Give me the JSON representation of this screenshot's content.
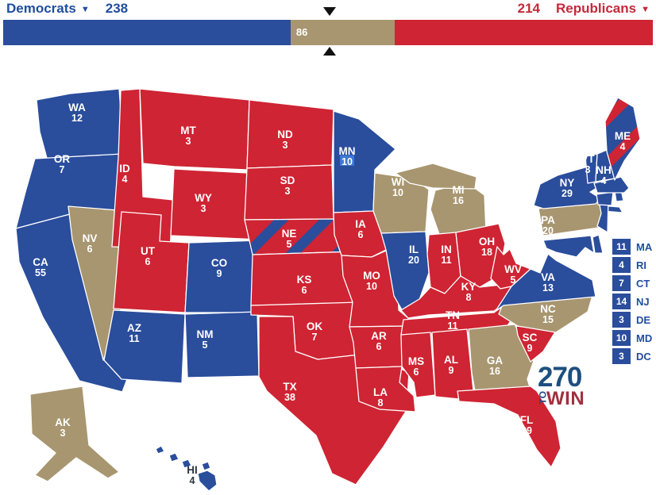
{
  "header": {
    "democrats": {
      "label": "Democrats",
      "ev": "238"
    },
    "republicans": {
      "label": "Republicans",
      "ev": "214"
    },
    "tossup": {
      "ev": "86"
    }
  },
  "icons": {
    "dropdown_caret": "▼"
  },
  "colors": {
    "dem": "#2A4D9C",
    "rep": "#CF2433",
    "tossup": "#A89670",
    "dem_text": "#1F4E9E",
    "rep_text": "#C5293A",
    "highlight": "#3D78D8",
    "state_label": "#FFFFFF",
    "dark_label": "#2B3440",
    "marker": "#111111",
    "logo_blue": "#1D4F7E",
    "logo_red": "#A1303F"
  },
  "map": {
    "states": [
      {
        "abbr": "WA",
        "ev": "12",
        "status": "dem",
        "label": [
          97,
          136
        ]
      },
      {
        "abbr": "OR",
        "ev": "7",
        "status": "dem",
        "label": [
          78,
          201
        ]
      },
      {
        "abbr": "CA",
        "ev": "55",
        "status": "dem",
        "label": [
          51,
          331
        ]
      },
      {
        "abbr": "NV",
        "ev": "6",
        "status": "tossup",
        "label": [
          113,
          301
        ]
      },
      {
        "abbr": "ID",
        "ev": "4",
        "status": "rep",
        "label": [
          157,
          213
        ]
      },
      {
        "abbr": "MT",
        "ev": "3",
        "status": "rep",
        "label": [
          237,
          165
        ]
      },
      {
        "abbr": "WY",
        "ev": "3",
        "status": "rep",
        "label": [
          256,
          250
        ]
      },
      {
        "abbr": "UT",
        "ev": "6",
        "status": "rep",
        "label": [
          186,
          317
        ]
      },
      {
        "abbr": "CO",
        "ev": "9",
        "status": "dem",
        "label": [
          276,
          332
        ]
      },
      {
        "abbr": "AZ",
        "ev": "11",
        "status": "dem",
        "label": [
          169,
          414
        ]
      },
      {
        "abbr": "NM",
        "ev": "5",
        "status": "dem",
        "label": [
          258,
          422
        ]
      },
      {
        "abbr": "ND",
        "ev": "3",
        "status": "rep",
        "label": [
          359,
          170
        ]
      },
      {
        "abbr": "SD",
        "ev": "3",
        "status": "rep",
        "label": [
          362,
          228
        ]
      },
      {
        "abbr": "NE",
        "ev": "5",
        "status": "rep",
        "label": [
          364,
          295
        ],
        "stripes": "dem"
      },
      {
        "abbr": "KS",
        "ev": "6",
        "status": "rep",
        "label": [
          383,
          353
        ]
      },
      {
        "abbr": "OK",
        "ev": "7",
        "status": "rep",
        "label": [
          396,
          412
        ]
      },
      {
        "abbr": "TX",
        "ev": "38",
        "status": "rep",
        "label": [
          365,
          488
        ]
      },
      {
        "abbr": "MN",
        "ev": "10",
        "status": "dem",
        "label": [
          437,
          191
        ],
        "ev_highlight": true
      },
      {
        "abbr": "IA",
        "ev": "6",
        "status": "rep",
        "label": [
          454,
          283
        ]
      },
      {
        "abbr": "MO",
        "ev": "10",
        "status": "rep",
        "label": [
          468,
          348
        ]
      },
      {
        "abbr": "AR",
        "ev": "6",
        "status": "rep",
        "label": [
          477,
          424
        ]
      },
      {
        "abbr": "LA",
        "ev": "8",
        "status": "rep",
        "label": [
          479,
          495
        ]
      },
      {
        "abbr": "WI",
        "ev": "10",
        "status": "tossup",
        "label": [
          501,
          230
        ]
      },
      {
        "abbr": "IL",
        "ev": "20",
        "status": "dem",
        "label": [
          521,
          315
        ]
      },
      {
        "abbr": "MI",
        "ev": "16",
        "status": "tossup",
        "label": [
          577,
          240
        ]
      },
      {
        "abbr": "IN",
        "ev": "11",
        "status": "rep",
        "label": [
          562,
          315
        ]
      },
      {
        "abbr": "OH",
        "ev": "18",
        "status": "rep",
        "label": [
          613,
          305
        ]
      },
      {
        "abbr": "KY",
        "ev": "8",
        "status": "rep",
        "label": [
          590,
          362
        ]
      },
      {
        "abbr": "TN",
        "ev": "11",
        "status": "rep",
        "label": [
          570,
          398
        ]
      },
      {
        "abbr": "MS",
        "ev": "6",
        "status": "rep",
        "label": [
          524,
          456
        ]
      },
      {
        "abbr": "AL",
        "ev": "9",
        "status": "rep",
        "label": [
          568,
          454
        ]
      },
      {
        "abbr": "GA",
        "ev": "16",
        "status": "tossup",
        "label": [
          623,
          455
        ]
      },
      {
        "abbr": "FL",
        "ev": "29",
        "status": "rep",
        "label": [
          663,
          530
        ]
      },
      {
        "abbr": "SC",
        "ev": "9",
        "status": "rep",
        "label": [
          667,
          426
        ]
      },
      {
        "abbr": "NC",
        "ev": "15",
        "status": "tossup",
        "label": [
          690,
          390
        ]
      },
      {
        "abbr": "WV",
        "ev": "5",
        "status": "rep",
        "label": [
          646,
          340
        ]
      },
      {
        "abbr": "VA",
        "ev": "13",
        "status": "dem",
        "label": [
          690,
          350
        ]
      },
      {
        "abbr": "PA",
        "ev": "20",
        "status": "tossup",
        "label": [
          690,
          278
        ]
      },
      {
        "abbr": "NY",
        "ev": "29",
        "status": "dem",
        "label": [
          714,
          231
        ]
      },
      {
        "abbr": "MD",
        "ev": "10",
        "status": "dem"
      },
      {
        "abbr": "DE",
        "ev": "3",
        "status": "dem"
      },
      {
        "abbr": "NJ",
        "ev": "14",
        "status": "dem"
      },
      {
        "abbr": "CT",
        "ev": "7",
        "status": "dem"
      },
      {
        "abbr": "RI",
        "ev": "4",
        "status": "dem"
      },
      {
        "abbr": "MA",
        "ev": "11",
        "status": "dem"
      },
      {
        "abbr": "VT",
        "ev": "3",
        "status": "dem",
        "label": [
          740,
          201
        ]
      },
      {
        "abbr": "NH",
        "ev": "4",
        "status": "dem",
        "label": [
          760,
          215
        ]
      },
      {
        "abbr": "ME",
        "ev": "4",
        "status": "dem",
        "label": [
          784,
          172
        ],
        "stripes": "rep"
      },
      {
        "abbr": "AK",
        "ev": "3",
        "status": "tossup",
        "label": [
          79,
          533
        ]
      },
      {
        "abbr": "HI",
        "ev": "4",
        "status": "dem",
        "label": [
          242,
          593
        ],
        "label_dark": true
      }
    ]
  },
  "small_states": [
    {
      "abbr": "MA",
      "ev": "11"
    },
    {
      "abbr": "RI",
      "ev": "4"
    },
    {
      "abbr": "CT",
      "ev": "7"
    },
    {
      "abbr": "NJ",
      "ev": "14"
    },
    {
      "abbr": "DE",
      "ev": "3"
    },
    {
      "abbr": "MD",
      "ev": "10"
    },
    {
      "abbr": "DC",
      "ev": "3"
    }
  ],
  "logo": {
    "number": "270",
    "to": "to",
    "win": "WIN"
  },
  "majority_needed": "270"
}
